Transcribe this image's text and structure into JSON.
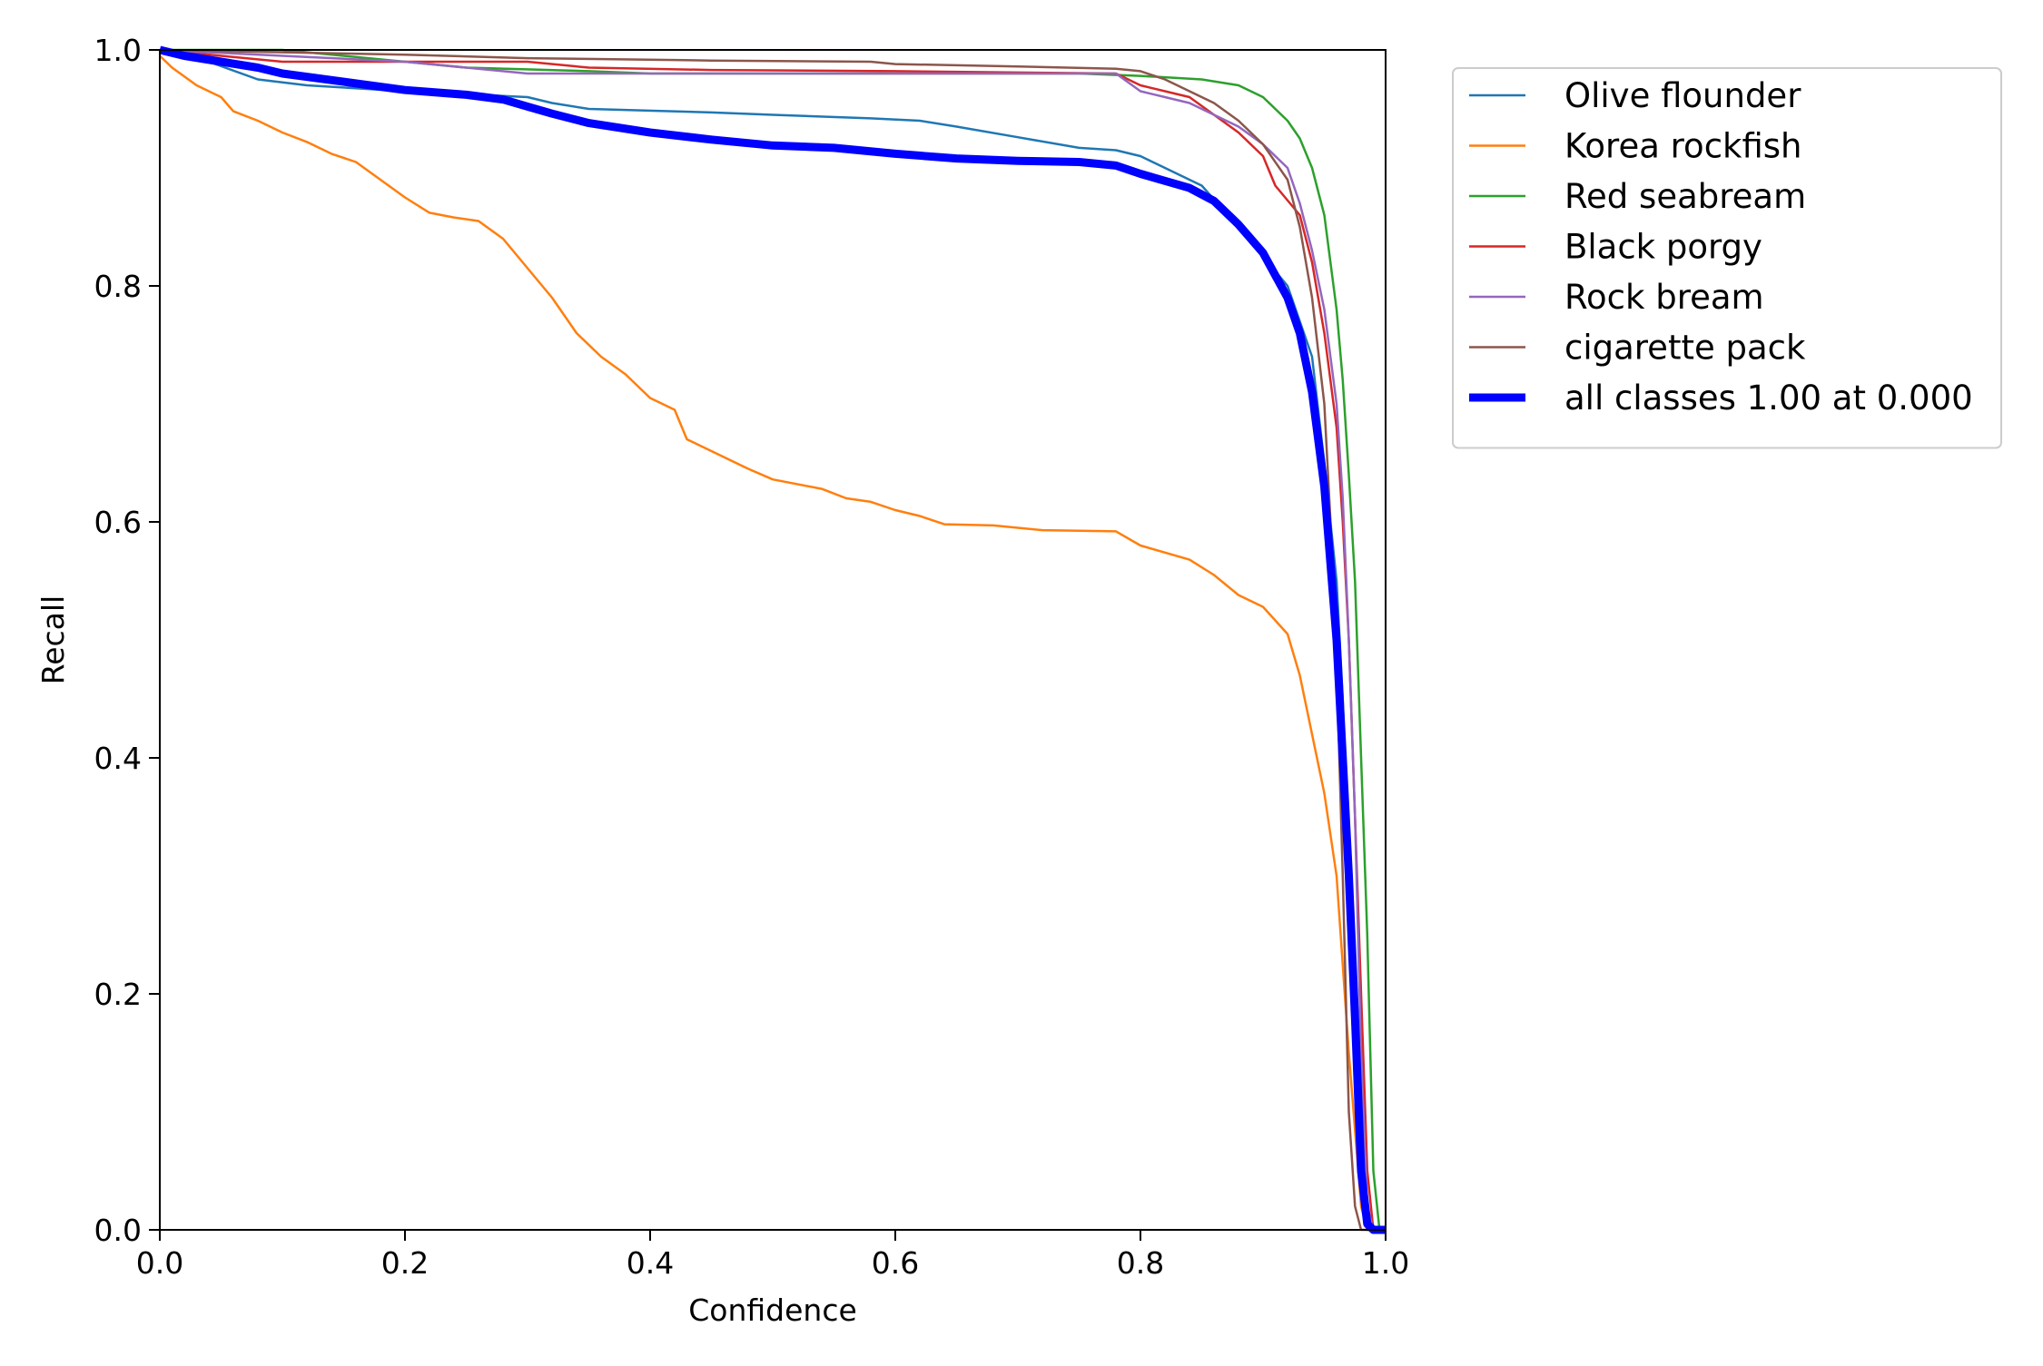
{
  "chart_data": {
    "type": "line",
    "title": "",
    "xlabel": "Confidence",
    "ylabel": "Recall",
    "xlim": [
      0.0,
      1.0
    ],
    "ylim": [
      0.0,
      1.0
    ],
    "xticks": [
      "0.0",
      "0.2",
      "0.4",
      "0.6",
      "0.8",
      "1.0"
    ],
    "yticks": [
      "0.0",
      "0.2",
      "0.4",
      "0.6",
      "0.8",
      "1.0"
    ],
    "grid": false,
    "legend_position": "outside-upper-right",
    "series": [
      {
        "name": "Olive flounder",
        "color": "#1f77b4",
        "points": [
          [
            0.0,
            1.0
          ],
          [
            0.04,
            0.99
          ],
          [
            0.08,
            0.975
          ],
          [
            0.12,
            0.97
          ],
          [
            0.2,
            0.965
          ],
          [
            0.3,
            0.96
          ],
          [
            0.32,
            0.955
          ],
          [
            0.35,
            0.95
          ],
          [
            0.45,
            0.947
          ],
          [
            0.5,
            0.945
          ],
          [
            0.58,
            0.942
          ],
          [
            0.62,
            0.94
          ],
          [
            0.65,
            0.935
          ],
          [
            0.7,
            0.926
          ],
          [
            0.75,
            0.917
          ],
          [
            0.78,
            0.915
          ],
          [
            0.8,
            0.91
          ],
          [
            0.82,
            0.9
          ],
          [
            0.85,
            0.885
          ],
          [
            0.88,
            0.85
          ],
          [
            0.9,
            0.825
          ],
          [
            0.92,
            0.8
          ],
          [
            0.94,
            0.74
          ],
          [
            0.95,
            0.65
          ],
          [
            0.96,
            0.55
          ],
          [
            0.965,
            0.45
          ],
          [
            0.97,
            0.3
          ],
          [
            0.975,
            0.15
          ],
          [
            0.98,
            0.03
          ],
          [
            0.985,
            0.0
          ],
          [
            1.0,
            0.0
          ]
        ]
      },
      {
        "name": "Korea rockfish",
        "color": "#ff7f0e",
        "points": [
          [
            0.0,
            0.995
          ],
          [
            0.01,
            0.985
          ],
          [
            0.03,
            0.97
          ],
          [
            0.05,
            0.96
          ],
          [
            0.06,
            0.948
          ],
          [
            0.08,
            0.94
          ],
          [
            0.1,
            0.93
          ],
          [
            0.12,
            0.922
          ],
          [
            0.14,
            0.912
          ],
          [
            0.16,
            0.905
          ],
          [
            0.18,
            0.89
          ],
          [
            0.2,
            0.875
          ],
          [
            0.22,
            0.862
          ],
          [
            0.24,
            0.858
          ],
          [
            0.26,
            0.855
          ],
          [
            0.28,
            0.84
          ],
          [
            0.3,
            0.815
          ],
          [
            0.32,
            0.79
          ],
          [
            0.34,
            0.76
          ],
          [
            0.36,
            0.74
          ],
          [
            0.38,
            0.725
          ],
          [
            0.4,
            0.705
          ],
          [
            0.42,
            0.695
          ],
          [
            0.43,
            0.67
          ],
          [
            0.46,
            0.655
          ],
          [
            0.48,
            0.645
          ],
          [
            0.5,
            0.636
          ],
          [
            0.54,
            0.628
          ],
          [
            0.56,
            0.62
          ],
          [
            0.58,
            0.617
          ],
          [
            0.6,
            0.61
          ],
          [
            0.62,
            0.605
          ],
          [
            0.64,
            0.598
          ],
          [
            0.68,
            0.597
          ],
          [
            0.72,
            0.593
          ],
          [
            0.78,
            0.592
          ],
          [
            0.8,
            0.58
          ],
          [
            0.84,
            0.568
          ],
          [
            0.86,
            0.555
          ],
          [
            0.88,
            0.538
          ],
          [
            0.9,
            0.528
          ],
          [
            0.92,
            0.505
          ],
          [
            0.93,
            0.47
          ],
          [
            0.94,
            0.42
          ],
          [
            0.95,
            0.37
          ],
          [
            0.96,
            0.3
          ],
          [
            0.97,
            0.15
          ],
          [
            0.98,
            0.02
          ],
          [
            0.985,
            0.0
          ],
          [
            1.0,
            0.0
          ]
        ]
      },
      {
        "name": "Red seabream",
        "color": "#2ca02c",
        "points": [
          [
            0.0,
            1.0
          ],
          [
            0.1,
            1.0
          ],
          [
            0.15,
            0.995
          ],
          [
            0.2,
            0.99
          ],
          [
            0.25,
            0.985
          ],
          [
            0.35,
            0.982
          ],
          [
            0.4,
            0.98
          ],
          [
            0.6,
            0.98
          ],
          [
            0.75,
            0.98
          ],
          [
            0.8,
            0.978
          ],
          [
            0.85,
            0.975
          ],
          [
            0.88,
            0.97
          ],
          [
            0.9,
            0.96
          ],
          [
            0.91,
            0.95
          ],
          [
            0.92,
            0.94
          ],
          [
            0.93,
            0.925
          ],
          [
            0.94,
            0.9
          ],
          [
            0.95,
            0.86
          ],
          [
            0.96,
            0.78
          ],
          [
            0.965,
            0.72
          ],
          [
            0.97,
            0.64
          ],
          [
            0.975,
            0.55
          ],
          [
            0.98,
            0.4
          ],
          [
            0.985,
            0.25
          ],
          [
            0.99,
            0.05
          ],
          [
            0.995,
            0.0
          ],
          [
            1.0,
            0.0
          ]
        ]
      },
      {
        "name": "Black porgy",
        "color": "#d62728",
        "points": [
          [
            0.0,
            1.0
          ],
          [
            0.05,
            0.995
          ],
          [
            0.1,
            0.99
          ],
          [
            0.3,
            0.99
          ],
          [
            0.35,
            0.985
          ],
          [
            0.45,
            0.983
          ],
          [
            0.6,
            0.982
          ],
          [
            0.78,
            0.98
          ],
          [
            0.8,
            0.97
          ],
          [
            0.82,
            0.965
          ],
          [
            0.84,
            0.96
          ],
          [
            0.86,
            0.945
          ],
          [
            0.88,
            0.93
          ],
          [
            0.9,
            0.91
          ],
          [
            0.91,
            0.885
          ],
          [
            0.93,
            0.86
          ],
          [
            0.94,
            0.82
          ],
          [
            0.95,
            0.76
          ],
          [
            0.96,
            0.68
          ],
          [
            0.965,
            0.6
          ],
          [
            0.97,
            0.5
          ],
          [
            0.975,
            0.35
          ],
          [
            0.98,
            0.2
          ],
          [
            0.985,
            0.05
          ],
          [
            0.99,
            0.0
          ],
          [
            1.0,
            0.0
          ]
        ]
      },
      {
        "name": "Rock bream",
        "color": "#9467bd",
        "points": [
          [
            0.0,
            1.0
          ],
          [
            0.1,
            0.995
          ],
          [
            0.2,
            0.99
          ],
          [
            0.25,
            0.985
          ],
          [
            0.3,
            0.98
          ],
          [
            0.5,
            0.98
          ],
          [
            0.7,
            0.98
          ],
          [
            0.78,
            0.98
          ],
          [
            0.8,
            0.965
          ],
          [
            0.82,
            0.96
          ],
          [
            0.84,
            0.955
          ],
          [
            0.86,
            0.945
          ],
          [
            0.88,
            0.935
          ],
          [
            0.9,
            0.92
          ],
          [
            0.92,
            0.9
          ],
          [
            0.93,
            0.87
          ],
          [
            0.94,
            0.83
          ],
          [
            0.95,
            0.78
          ],
          [
            0.96,
            0.7
          ],
          [
            0.965,
            0.62
          ],
          [
            0.97,
            0.5
          ],
          [
            0.975,
            0.35
          ],
          [
            0.98,
            0.15
          ],
          [
            0.985,
            0.02
          ],
          [
            0.99,
            0.0
          ],
          [
            1.0,
            0.0
          ]
        ]
      },
      {
        "name": "cigarette pack",
        "color": "#8c564b",
        "points": [
          [
            0.0,
            1.0
          ],
          [
            0.1,
            0.998
          ],
          [
            0.2,
            0.996
          ],
          [
            0.3,
            0.993
          ],
          [
            0.45,
            0.991
          ],
          [
            0.58,
            0.99
          ],
          [
            0.6,
            0.988
          ],
          [
            0.7,
            0.986
          ],
          [
            0.78,
            0.984
          ],
          [
            0.8,
            0.982
          ],
          [
            0.82,
            0.975
          ],
          [
            0.84,
            0.965
          ],
          [
            0.86,
            0.955
          ],
          [
            0.88,
            0.94
          ],
          [
            0.9,
            0.92
          ],
          [
            0.92,
            0.89
          ],
          [
            0.93,
            0.85
          ],
          [
            0.94,
            0.79
          ],
          [
            0.95,
            0.7
          ],
          [
            0.955,
            0.6
          ],
          [
            0.96,
            0.48
          ],
          [
            0.965,
            0.3
          ],
          [
            0.97,
            0.1
          ],
          [
            0.975,
            0.02
          ],
          [
            0.98,
            0.0
          ],
          [
            1.0,
            0.0
          ]
        ]
      },
      {
        "name": "all classes 1.00 at 0.000",
        "color": "#0000ff",
        "thick": true,
        "points": [
          [
            0.0,
            1.0
          ],
          [
            0.02,
            0.995
          ],
          [
            0.05,
            0.99
          ],
          [
            0.08,
            0.985
          ],
          [
            0.1,
            0.98
          ],
          [
            0.15,
            0.973
          ],
          [
            0.2,
            0.966
          ],
          [
            0.25,
            0.962
          ],
          [
            0.28,
            0.958
          ],
          [
            0.3,
            0.952
          ],
          [
            0.32,
            0.946
          ],
          [
            0.35,
            0.938
          ],
          [
            0.4,
            0.93
          ],
          [
            0.45,
            0.924
          ],
          [
            0.5,
            0.919
          ],
          [
            0.55,
            0.917
          ],
          [
            0.6,
            0.912
          ],
          [
            0.65,
            0.908
          ],
          [
            0.7,
            0.906
          ],
          [
            0.75,
            0.905
          ],
          [
            0.78,
            0.902
          ],
          [
            0.8,
            0.895
          ],
          [
            0.82,
            0.889
          ],
          [
            0.84,
            0.883
          ],
          [
            0.86,
            0.872
          ],
          [
            0.88,
            0.852
          ],
          [
            0.9,
            0.828
          ],
          [
            0.92,
            0.79
          ],
          [
            0.93,
            0.76
          ],
          [
            0.94,
            0.71
          ],
          [
            0.95,
            0.63
          ],
          [
            0.96,
            0.5
          ],
          [
            0.965,
            0.4
          ],
          [
            0.97,
            0.3
          ],
          [
            0.975,
            0.18
          ],
          [
            0.98,
            0.05
          ],
          [
            0.985,
            0.005
          ],
          [
            0.99,
            0.0
          ],
          [
            1.0,
            0.0
          ]
        ]
      }
    ]
  }
}
